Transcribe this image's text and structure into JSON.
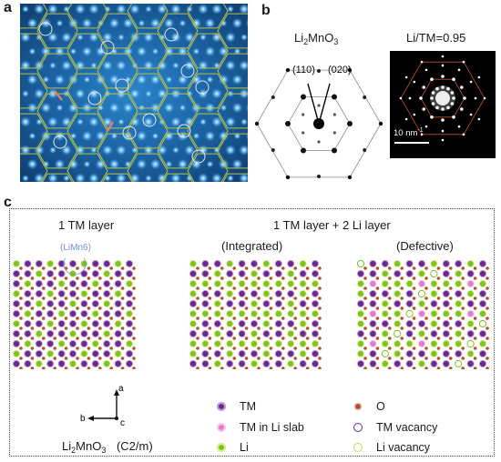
{
  "panels": {
    "a": {
      "letter": "a"
    },
    "b": {
      "letter": "b",
      "pattern_formula_prefix": "Li",
      "pattern_formula_sub": "2",
      "pattern_formula_suffix": "MnO",
      "pattern_formula_sub2": "3",
      "spot_110": "(110)",
      "spot_020": "(020)",
      "saed_title": "Li/TM=0.95",
      "scale_bar": "10 nm",
      "scale_bar_sup": "-1"
    },
    "c": {
      "letter": "c",
      "left_title": "1 TM layer",
      "right_title": "1 TM layer + 2 Li layer",
      "integrated": "(Integrated)",
      "defective": "(Defective)",
      "limn6": "(LiMn6)",
      "axes": {
        "a": "a",
        "b": "b",
        "c": "c"
      },
      "formula_prefix": "Li",
      "formula_sub": "2",
      "formula_suffix": "MnO",
      "formula_sub2": "3",
      "space_group": "(C2/m)"
    }
  },
  "legend": [
    {
      "label": "TM",
      "icon": "tm-dot-icon",
      "color": "#6a2a8c"
    },
    {
      "label": "TM in Li slab",
      "icon": "tm-in-li-dot-icon",
      "color": "#e07bd0"
    },
    {
      "label": "Li",
      "icon": "li-dot-icon",
      "color": "#7fc31c"
    },
    {
      "label": "O",
      "icon": "o-dot-icon",
      "color": "#b5532a"
    },
    {
      "label": "TM vacancy",
      "icon": "tm-vacancy-icon",
      "color": "#6a2a8c"
    },
    {
      "label": "Li vacancy",
      "icon": "li-vacancy-icon",
      "color": "#b8e05a"
    }
  ],
  "colors": {
    "tm": "#6a2a8c",
    "tm_in_li": "#e07bd0",
    "li": "#7fc31c",
    "o": "#b5532a",
    "honeycomb": "#b7c44a",
    "stem_bg": "#1b5f9e",
    "saed_hex": "#c0522a"
  }
}
